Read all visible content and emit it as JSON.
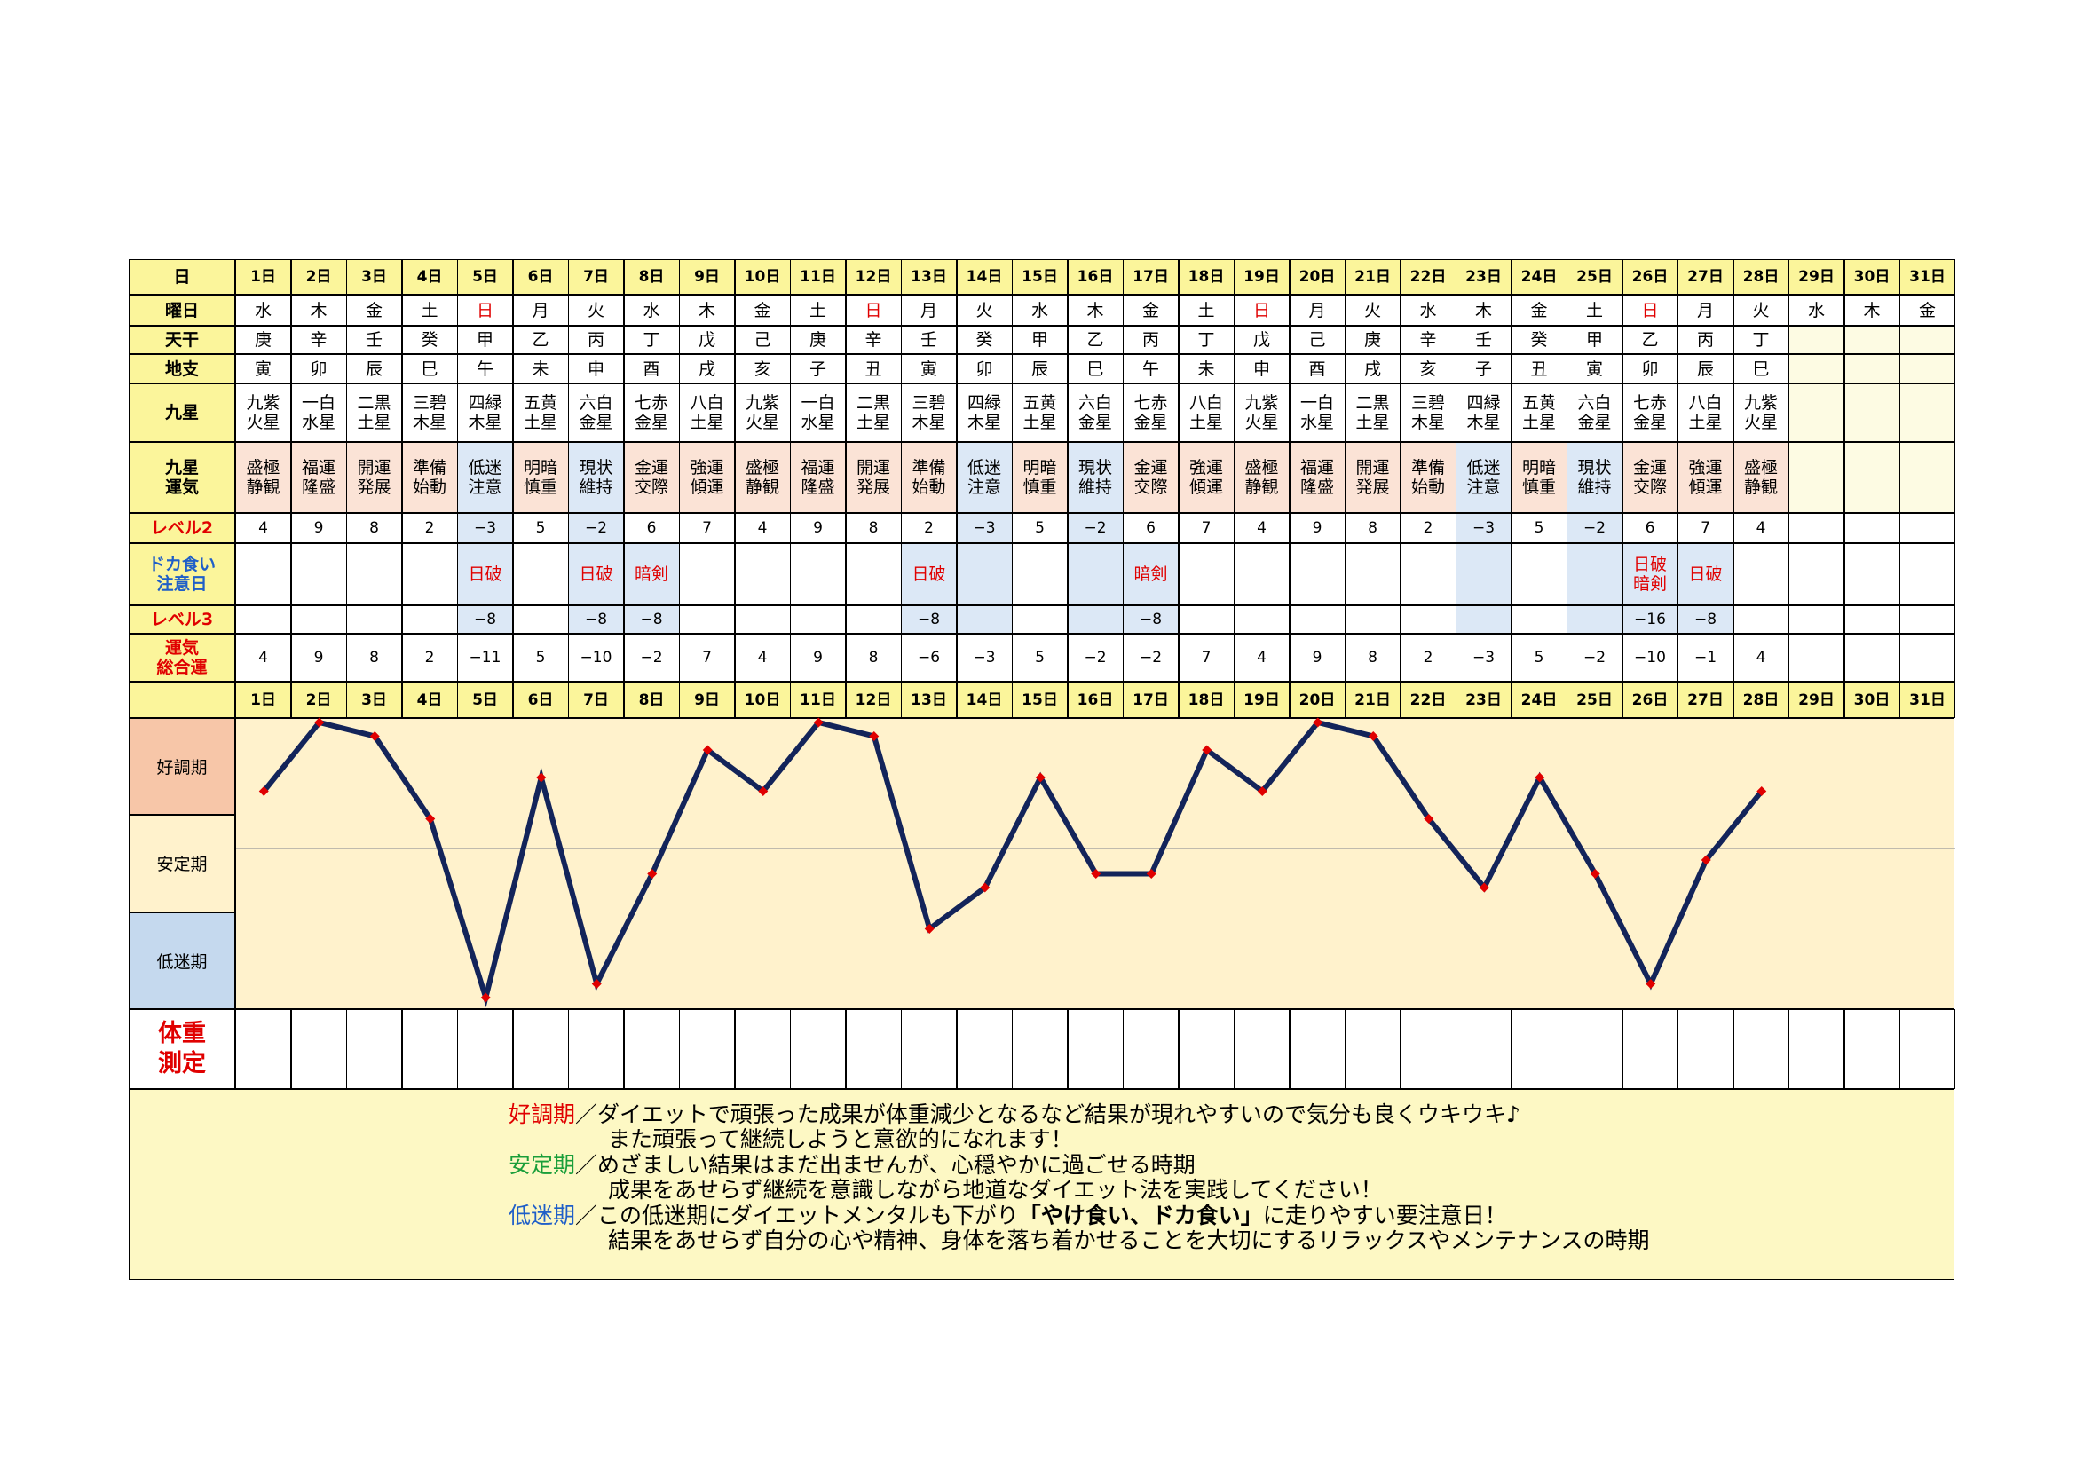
{
  "headers": {
    "day": "日",
    "weekday": "曜日",
    "tenkan": "天干",
    "chishi": "地支",
    "kyusei": "九星",
    "kyusei_unki": "九星\n運気",
    "level2": "レベル2",
    "dokagui": "ドカ食い\n注意日",
    "level3": "レベル3",
    "sogo": "運気\n総合運",
    "weight": "体重\n測定"
  },
  "days": [
    "1日",
    "2日",
    "3日",
    "4日",
    "5日",
    "6日",
    "7日",
    "8日",
    "9日",
    "10日",
    "11日",
    "12日",
    "13日",
    "14日",
    "15日",
    "16日",
    "17日",
    "18日",
    "19日",
    "20日",
    "21日",
    "22日",
    "23日",
    "24日",
    "25日",
    "26日",
    "27日",
    "28日",
    "29日",
    "30日",
    "31日"
  ],
  "weekdays": [
    "水",
    "木",
    "金",
    "土",
    "日",
    "月",
    "火",
    "水",
    "木",
    "金",
    "土",
    "日",
    "月",
    "火",
    "水",
    "木",
    "金",
    "土",
    "日",
    "月",
    "火",
    "水",
    "木",
    "金",
    "土",
    "日",
    "月",
    "火",
    "水",
    "木",
    "金"
  ],
  "tenkan": [
    "庚",
    "辛",
    "壬",
    "癸",
    "甲",
    "乙",
    "丙",
    "丁",
    "戊",
    "己",
    "庚",
    "辛",
    "壬",
    "癸",
    "甲",
    "乙",
    "丙",
    "丁",
    "戊",
    "己",
    "庚",
    "辛",
    "壬",
    "癸",
    "甲",
    "乙",
    "丙",
    "丁",
    "",
    "",
    ""
  ],
  "chishi": [
    "寅",
    "卯",
    "辰",
    "巳",
    "午",
    "未",
    "申",
    "酉",
    "戌",
    "亥",
    "子",
    "丑",
    "寅",
    "卯",
    "辰",
    "巳",
    "午",
    "未",
    "申",
    "酉",
    "戌",
    "亥",
    "子",
    "丑",
    "寅",
    "卯",
    "辰",
    "巳",
    "",
    "",
    ""
  ],
  "kyusei": [
    "九紫\n火星",
    "一白\n水星",
    "二黒\n土星",
    "三碧\n木星",
    "四緑\n木星",
    "五黄\n土星",
    "六白\n金星",
    "七赤\n金星",
    "八白\n土星",
    "九紫\n火星",
    "一白\n水星",
    "二黒\n土星",
    "三碧\n木星",
    "四緑\n木星",
    "五黄\n土星",
    "六白\n金星",
    "七赤\n金星",
    "八白\n土星",
    "九紫\n火星",
    "一白\n水星",
    "二黒\n土星",
    "三碧\n木星",
    "四緑\n木星",
    "五黄\n土星",
    "六白\n金星",
    "七赤\n金星",
    "八白\n土星",
    "九紫\n火星",
    "",
    "",
    ""
  ],
  "kyusei_unki": [
    "盛極\n静観",
    "福運\n隆盛",
    "開運\n発展",
    "準備\n始動",
    "低迷\n注意",
    "明暗\n慎重",
    "現状\n維持",
    "金運\n交際",
    "強運\n傾運",
    "盛極\n静観",
    "福運\n隆盛",
    "開運\n発展",
    "準備\n始動",
    "低迷\n注意",
    "明暗\n慎重",
    "現状\n維持",
    "金運\n交際",
    "強運\n傾運",
    "盛極\n静観",
    "福運\n隆盛",
    "開運\n発展",
    "準備\n始動",
    "低迷\n注意",
    "明暗\n慎重",
    "現状\n維持",
    "金運\n交際",
    "強運\n傾運",
    "盛極\n静観",
    "",
    "",
    ""
  ],
  "level2": [
    "4",
    "9",
    "8",
    "2",
    "−3",
    "5",
    "−2",
    "6",
    "7",
    "4",
    "9",
    "8",
    "2",
    "−3",
    "5",
    "−2",
    "6",
    "7",
    "4",
    "9",
    "8",
    "2",
    "−3",
    "5",
    "−2",
    "6",
    "7",
    "4",
    "",
    "",
    ""
  ],
  "dokagui": [
    "",
    "",
    "",
    "",
    "日破",
    "",
    "日破",
    "暗剣",
    "",
    "",
    "",
    "",
    "日破",
    "",
    "",
    "",
    "暗剣",
    "",
    "",
    "",
    "",
    "",
    "",
    "",
    "",
    "日破\n暗剣",
    "日破",
    "",
    "",
    "",
    ""
  ],
  "level3": [
    "",
    "",
    "",
    "",
    "−8",
    "",
    "−8",
    "−8",
    "",
    "",
    "",
    "",
    "−8",
    "",
    "",
    "",
    "−8",
    "",
    "",
    "",
    "",
    "",
    "",
    "",
    "",
    "−16",
    "−8",
    "",
    "",
    "",
    ""
  ],
  "sogo": [
    "4",
    "9",
    "8",
    "2",
    "−11",
    "5",
    "−10",
    "−2",
    "7",
    "4",
    "9",
    "8",
    "−6",
    "−3",
    "5",
    "−2",
    "−2",
    "7",
    "4",
    "9",
    "8",
    "2",
    "−3",
    "5",
    "−2",
    "−10",
    "−1",
    "4",
    "",
    "",
    ""
  ],
  "bands": {
    "good": "好調期",
    "stable": "安定期",
    "low": "低迷期"
  },
  "colors": {
    "line": "#13245a",
    "marker": "#e00000",
    "good_bg": "#f7c6a8",
    "stable_bg": "#fff2cc",
    "low_bg": "#c5d9ee",
    "plot_bg": "#fff2cc"
  },
  "legend": {
    "good_key": "好調期",
    "good_text1": "／ダイエットで頑張った成果が体重減少となるなど結果が現れやすいので気分も良くウキウキ♪",
    "good_text2": "また頑張って継続しようと意欲的になれます！",
    "stable_key": "安定期",
    "stable_text1": "／めざましい結果はまだ出ませんが、心穏やかに過ごせる時期",
    "stable_text2": "成果をあせらず継続を意識しながら地道なダイエット法を実践してください！",
    "low_key": "低迷期",
    "low_text1a": "／この低迷期にダイエットメンタルも下がり",
    "low_text1b": "「やけ食い、ドカ食い」",
    "low_text1c": "に走りやすい要注意日！",
    "low_text2": "結果をあせらず自分の心や精神、身体を落ち着かせることを大切にするリラックスやメンテナンスの時期"
  },
  "chart_data": {
    "type": "line",
    "x": [
      "1日",
      "2日",
      "3日",
      "4日",
      "5日",
      "6日",
      "7日",
      "8日",
      "9日",
      "10日",
      "11日",
      "12日",
      "13日",
      "14日",
      "15日",
      "16日",
      "17日",
      "18日",
      "19日",
      "20日",
      "21日",
      "22日",
      "23日",
      "24日",
      "25日",
      "26日",
      "27日",
      "28日"
    ],
    "series": [
      {
        "values": [
          4,
          9,
          8,
          2,
          -11,
          5,
          -10,
          -2,
          7,
          4,
          9,
          8,
          -6,
          -3,
          5,
          -2,
          -2,
          7,
          4,
          9,
          8,
          2,
          -3,
          5,
          -2,
          -10,
          -1,
          4
        ]
      }
    ],
    "ylim": [
      -11,
      9
    ],
    "bands": [
      "好調期",
      "安定期",
      "低迷期"
    ]
  }
}
